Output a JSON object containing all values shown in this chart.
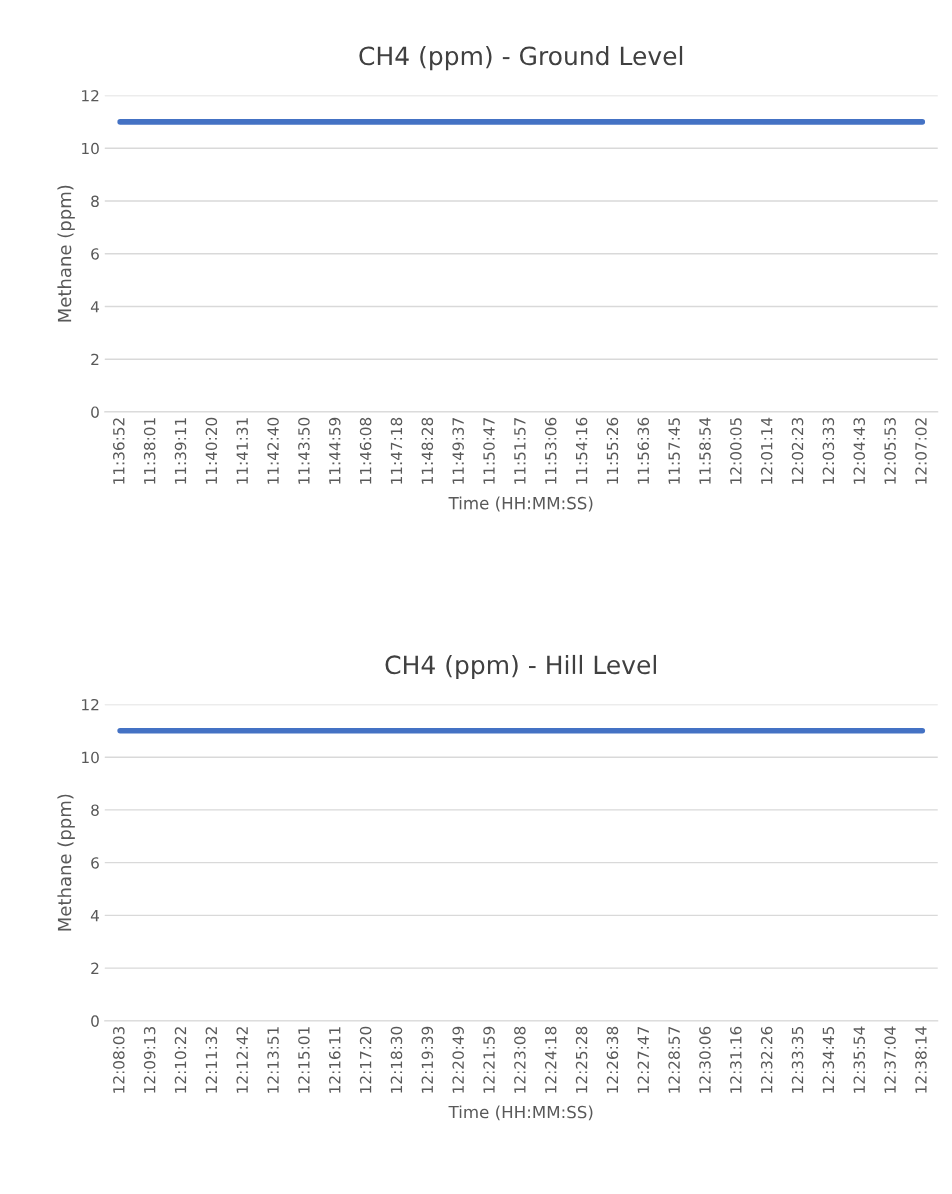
{
  "chart_data": [
    {
      "type": "line",
      "title": "CH4 (ppm) - Ground Level",
      "xlabel": "Time (HH:MM:SS)",
      "ylabel": "Methane (ppm)",
      "categories": [
        "11:36:52",
        "11:38:01",
        "11:39:11",
        "11:40:20",
        "11:41:31",
        "11:42:40",
        "11:43:50",
        "11:44:59",
        "11:46:08",
        "11:47:18",
        "11:48:28",
        "11:49:37",
        "11:50:47",
        "11:51:57",
        "11:53:06",
        "11:54:16",
        "11:55:26",
        "11:56:36",
        "11:57:45",
        "11:58:54",
        "12:00:05",
        "12:01:14",
        "12:02:23",
        "12:03:33",
        "12:04:43",
        "12:05:53",
        "12:07:02"
      ],
      "series": [
        {
          "color": "#4472c4",
          "values": [
            11,
            11,
            11,
            11,
            11,
            11,
            11,
            11,
            11,
            11,
            11,
            11,
            11,
            11,
            11,
            11,
            11,
            11,
            11,
            11,
            11,
            11,
            11,
            11,
            11,
            11,
            11
          ]
        }
      ],
      "ylim": [
        0,
        12
      ],
      "yticks": [
        0,
        2,
        4,
        6,
        8,
        10,
        12
      ],
      "grid": "y",
      "marker": "none",
      "line_style": "solid"
    },
    {
      "type": "line",
      "title": "CH4 (ppm) - Hill Level",
      "xlabel": "Time (HH:MM:SS)",
      "ylabel": "Methane (ppm)",
      "categories": [
        "12:08:03",
        "12:09:13",
        "12:10:22",
        "12:11:32",
        "12:12:42",
        "12:13:51",
        "12:15:01",
        "12:16:11",
        "12:17:20",
        "12:18:30",
        "12:19:39",
        "12:20:49",
        "12:21:59",
        "12:23:08",
        "12:24:18",
        "12:25:28",
        "12:26:38",
        "12:27:47",
        "12:28:57",
        "12:30:06",
        "12:31:16",
        "12:32:26",
        "12:33:35",
        "12:34:45",
        "12:35:54",
        "12:37:04",
        "12:38:14"
      ],
      "series": [
        {
          "color": "#4472c4",
          "values": [
            11,
            11,
            11,
            11,
            11,
            11,
            11,
            11,
            11,
            11,
            11,
            11,
            11,
            11,
            11,
            11,
            11,
            11,
            11,
            11,
            11,
            11,
            11,
            11,
            11,
            11,
            11
          ]
        }
      ],
      "ylim": [
        0,
        12
      ],
      "yticks": [
        0,
        2,
        4,
        6,
        8,
        10,
        12
      ],
      "grid": "y",
      "marker": "none",
      "line_style": "solid"
    }
  ]
}
